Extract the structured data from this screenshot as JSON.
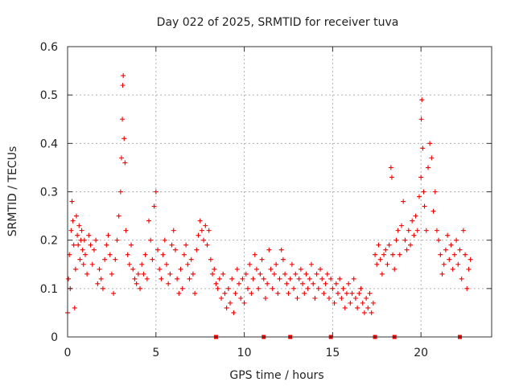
{
  "chart_data": {
    "type": "scatter",
    "title": "Day 022 of 2025, SRMTID for receiver tuva",
    "xlabel": "GPS time / hours",
    "ylabel": "SRMTID / TECUs",
    "xlim": [
      0,
      24
    ],
    "ylim": [
      0,
      0.6
    ],
    "xticks": [
      0,
      5,
      10,
      15,
      20
    ],
    "yticks": [
      0,
      0.1,
      0.2,
      0.3,
      0.4,
      0.5,
      0.6
    ],
    "xtick_labels": [
      "0",
      "5",
      "10",
      "15",
      "20"
    ],
    "ytick_labels": [
      "0",
      "0.1",
      "0.2",
      "0.3",
      "0.4",
      "0.5",
      "0.6"
    ],
    "grid": true,
    "legend": "none",
    "marker": "+",
    "color": "#ee0000",
    "baseline_markers_x": [
      8.4,
      11.1,
      12.6,
      14.9,
      17.4,
      18.5,
      22.2
    ],
    "series": [
      {
        "name": "SRMTID",
        "points": [
          [
            0.0,
            0.05
          ],
          [
            0.05,
            0.12
          ],
          [
            0.1,
            0.17
          ],
          [
            0.15,
            0.1
          ],
          [
            0.2,
            0.22
          ],
          [
            0.25,
            0.28
          ],
          [
            0.3,
            0.24
          ],
          [
            0.35,
            0.19
          ],
          [
            0.4,
            0.06
          ],
          [
            0.45,
            0.14
          ],
          [
            0.5,
            0.25
          ],
          [
            0.55,
            0.21
          ],
          [
            0.6,
            0.19
          ],
          [
            0.65,
            0.23
          ],
          [
            0.7,
            0.16
          ],
          [
            0.75,
            0.2
          ],
          [
            0.8,
            0.22
          ],
          [
            0.85,
            0.18
          ],
          [
            0.9,
            0.15
          ],
          [
            0.95,
            0.2
          ],
          [
            1.0,
            0.17
          ],
          [
            1.1,
            0.13
          ],
          [
            1.2,
            0.21
          ],
          [
            1.3,
            0.19
          ],
          [
            1.4,
            0.15
          ],
          [
            1.5,
            0.18
          ],
          [
            1.6,
            0.2
          ],
          [
            1.7,
            0.11
          ],
          [
            1.8,
            0.14
          ],
          [
            1.9,
            0.12
          ],
          [
            2.0,
            0.1
          ],
          [
            2.1,
            0.16
          ],
          [
            2.2,
            0.19
          ],
          [
            2.3,
            0.21
          ],
          [
            2.4,
            0.17
          ],
          [
            2.5,
            0.13
          ],
          [
            2.6,
            0.09
          ],
          [
            2.7,
            0.16
          ],
          [
            2.8,
            0.2
          ],
          [
            2.9,
            0.25
          ],
          [
            3.0,
            0.3
          ],
          [
            3.05,
            0.37
          ],
          [
            3.1,
            0.45
          ],
          [
            3.12,
            0.52
          ],
          [
            3.15,
            0.54
          ],
          [
            3.2,
            0.41
          ],
          [
            3.25,
            0.36
          ],
          [
            3.3,
            0.22
          ],
          [
            3.4,
            0.17
          ],
          [
            3.5,
            0.15
          ],
          [
            3.6,
            0.19
          ],
          [
            3.7,
            0.14
          ],
          [
            3.8,
            0.12
          ],
          [
            3.9,
            0.11
          ],
          [
            4.0,
            0.13
          ],
          [
            4.1,
            0.1
          ],
          [
            4.2,
            0.15
          ],
          [
            4.3,
            0.13
          ],
          [
            4.4,
            0.17
          ],
          [
            4.5,
            0.12
          ],
          [
            4.6,
            0.24
          ],
          [
            4.7,
            0.2
          ],
          [
            4.8,
            0.16
          ],
          [
            4.9,
            0.27
          ],
          [
            5.0,
            0.3
          ],
          [
            5.1,
            0.18
          ],
          [
            5.2,
            0.14
          ],
          [
            5.3,
            0.12
          ],
          [
            5.4,
            0.17
          ],
          [
            5.5,
            0.2
          ],
          [
            5.6,
            0.15
          ],
          [
            5.7,
            0.11
          ],
          [
            5.8,
            0.13
          ],
          [
            5.9,
            0.19
          ],
          [
            6.0,
            0.22
          ],
          [
            6.1,
            0.18
          ],
          [
            6.2,
            0.12
          ],
          [
            6.3,
            0.09
          ],
          [
            6.4,
            0.14
          ],
          [
            6.5,
            0.1
          ],
          [
            6.6,
            0.17
          ],
          [
            6.7,
            0.19
          ],
          [
            6.8,
            0.15
          ],
          [
            6.9,
            0.12
          ],
          [
            7.0,
            0.16
          ],
          [
            7.1,
            0.13
          ],
          [
            7.2,
            0.09
          ],
          [
            7.3,
            0.18
          ],
          [
            7.4,
            0.21
          ],
          [
            7.5,
            0.24
          ],
          [
            7.6,
            0.22
          ],
          [
            7.7,
            0.2
          ],
          [
            7.8,
            0.23
          ],
          [
            7.9,
            0.19
          ],
          [
            8.0,
            0.22
          ],
          [
            8.1,
            0.16
          ],
          [
            8.2,
            0.13
          ],
          [
            8.3,
            0.14
          ],
          [
            8.4,
            0.11
          ],
          [
            8.5,
            0.1
          ],
          [
            8.6,
            0.12
          ],
          [
            8.7,
            0.08
          ],
          [
            8.8,
            0.13
          ],
          [
            8.9,
            0.09
          ],
          [
            9.0,
            0.06
          ],
          [
            9.1,
            0.1
          ],
          [
            9.2,
            0.07
          ],
          [
            9.3,
            0.12
          ],
          [
            9.4,
            0.05
          ],
          [
            9.5,
            0.09
          ],
          [
            9.6,
            0.14
          ],
          [
            9.7,
            0.11
          ],
          [
            9.8,
            0.08
          ],
          [
            9.9,
            0.12
          ],
          [
            10.0,
            0.07
          ],
          [
            10.1,
            0.13
          ],
          [
            10.2,
            0.1
          ],
          [
            10.3,
            0.15
          ],
          [
            10.4,
            0.09
          ],
          [
            10.5,
            0.12
          ],
          [
            10.6,
            0.17
          ],
          [
            10.7,
            0.14
          ],
          [
            10.8,
            0.1
          ],
          [
            10.9,
            0.13
          ],
          [
            11.0,
            0.16
          ],
          [
            11.1,
            0.12
          ],
          [
            11.2,
            0.08
          ],
          [
            11.3,
            0.11
          ],
          [
            11.4,
            0.18
          ],
          [
            11.5,
            0.14
          ],
          [
            11.6,
            0.1
          ],
          [
            11.7,
            0.13
          ],
          [
            11.8,
            0.15
          ],
          [
            11.9,
            0.09
          ],
          [
            12.0,
            0.12
          ],
          [
            12.1,
            0.18
          ],
          [
            12.2,
            0.16
          ],
          [
            12.3,
            0.13
          ],
          [
            12.4,
            0.11
          ],
          [
            12.5,
            0.09
          ],
          [
            12.6,
            0.12
          ],
          [
            12.7,
            0.15
          ],
          [
            12.8,
            0.1
          ],
          [
            12.9,
            0.13
          ],
          [
            13.0,
            0.08
          ],
          [
            13.1,
            0.12
          ],
          [
            13.2,
            0.14
          ],
          [
            13.3,
            0.11
          ],
          [
            13.4,
            0.09
          ],
          [
            13.5,
            0.13
          ],
          [
            13.6,
            0.1
          ],
          [
            13.7,
            0.12
          ],
          [
            13.8,
            0.15
          ],
          [
            13.9,
            0.11
          ],
          [
            14.0,
            0.08
          ],
          [
            14.1,
            0.13
          ],
          [
            14.2,
            0.1
          ],
          [
            14.3,
            0.14
          ],
          [
            14.4,
            0.12
          ],
          [
            14.5,
            0.09
          ],
          [
            14.6,
            0.11
          ],
          [
            14.7,
            0.13
          ],
          [
            14.8,
            0.08
          ],
          [
            14.9,
            0.12
          ],
          [
            15.0,
            0.1
          ],
          [
            15.1,
            0.07
          ],
          [
            15.2,
            0.11
          ],
          [
            15.3,
            0.09
          ],
          [
            15.4,
            0.12
          ],
          [
            15.5,
            0.08
          ],
          [
            15.6,
            0.1
          ],
          [
            15.7,
            0.06
          ],
          [
            15.8,
            0.09
          ],
          [
            15.9,
            0.11
          ],
          [
            16.0,
            0.07
          ],
          [
            16.1,
            0.09
          ],
          [
            16.2,
            0.12
          ],
          [
            16.3,
            0.08
          ],
          [
            16.4,
            0.06
          ],
          [
            16.5,
            0.09
          ],
          [
            16.6,
            0.1
          ],
          [
            16.7,
            0.07
          ],
          [
            16.8,
            0.05
          ],
          [
            16.9,
            0.08
          ],
          [
            17.0,
            0.06
          ],
          [
            17.1,
            0.09
          ],
          [
            17.2,
            0.05
          ],
          [
            17.3,
            0.07
          ],
          [
            17.4,
            0.17
          ],
          [
            17.5,
            0.15
          ],
          [
            17.6,
            0.19
          ],
          [
            17.7,
            0.16
          ],
          [
            17.8,
            0.13
          ],
          [
            17.9,
            0.17
          ],
          [
            18.0,
            0.18
          ],
          [
            18.1,
            0.15
          ],
          [
            18.2,
            0.19
          ],
          [
            18.3,
            0.35
          ],
          [
            18.35,
            0.33
          ],
          [
            18.4,
            0.17
          ],
          [
            18.5,
            0.14
          ],
          [
            18.6,
            0.2
          ],
          [
            18.7,
            0.22
          ],
          [
            18.8,
            0.17
          ],
          [
            18.9,
            0.23
          ],
          [
            19.0,
            0.28
          ],
          [
            19.1,
            0.2
          ],
          [
            19.2,
            0.18
          ],
          [
            19.3,
            0.22
          ],
          [
            19.4,
            0.19
          ],
          [
            19.5,
            0.24
          ],
          [
            19.6,
            0.21
          ],
          [
            19.7,
            0.25
          ],
          [
            19.8,
            0.22
          ],
          [
            19.9,
            0.29
          ],
          [
            20.0,
            0.33
          ],
          [
            20.02,
            0.45
          ],
          [
            20.05,
            0.49
          ],
          [
            20.1,
            0.39
          ],
          [
            20.15,
            0.3
          ],
          [
            20.2,
            0.27
          ],
          [
            20.3,
            0.22
          ],
          [
            20.4,
            0.35
          ],
          [
            20.5,
            0.4
          ],
          [
            20.6,
            0.37
          ],
          [
            20.7,
            0.26
          ],
          [
            20.8,
            0.3
          ],
          [
            20.9,
            0.22
          ],
          [
            21.0,
            0.2
          ],
          [
            21.1,
            0.17
          ],
          [
            21.2,
            0.13
          ],
          [
            21.3,
            0.15
          ],
          [
            21.4,
            0.18
          ],
          [
            21.5,
            0.21
          ],
          [
            21.6,
            0.16
          ],
          [
            21.7,
            0.19
          ],
          [
            21.8,
            0.14
          ],
          [
            21.9,
            0.17
          ],
          [
            22.0,
            0.2
          ],
          [
            22.1,
            0.15
          ],
          [
            22.2,
            0.18
          ],
          [
            22.3,
            0.12
          ],
          [
            22.4,
            0.22
          ],
          [
            22.5,
            0.17
          ],
          [
            22.6,
            0.1
          ],
          [
            22.7,
            0.14
          ],
          [
            22.8,
            0.16
          ]
        ]
      }
    ]
  }
}
